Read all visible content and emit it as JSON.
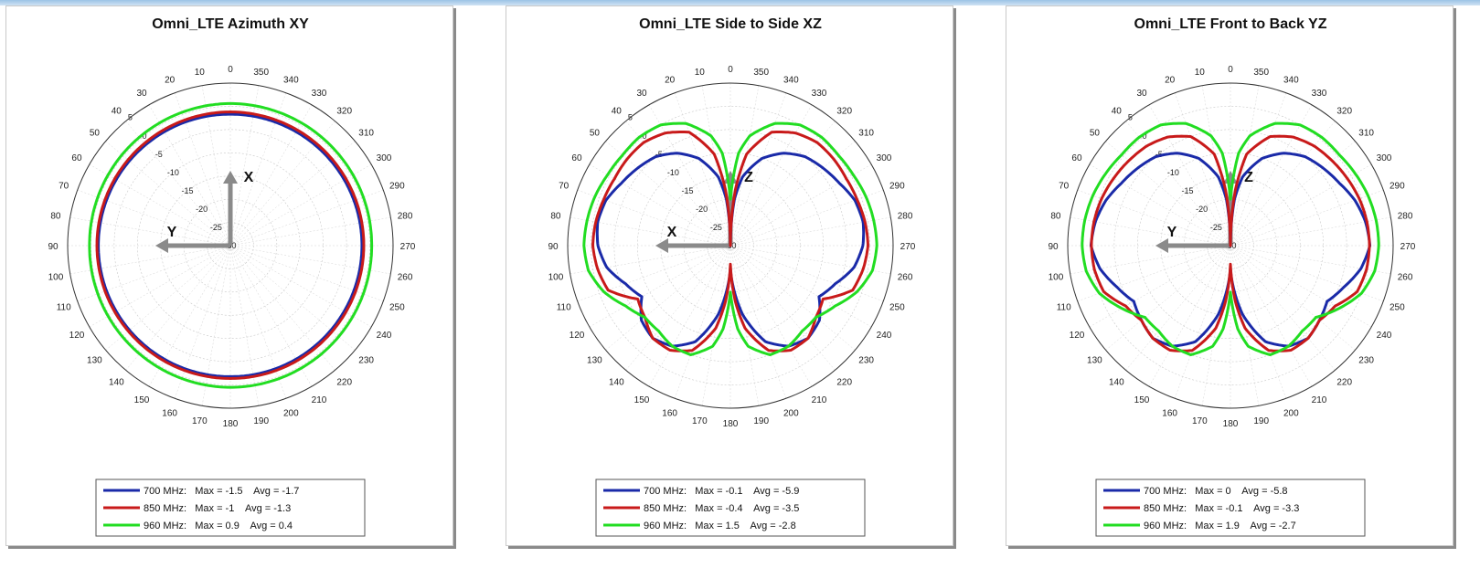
{
  "chart_data": [
    {
      "type": "polar",
      "title": "Omni_LTE Azimuth XY",
      "angle_labels": [
        "0",
        "10",
        "20",
        "30",
        "40",
        "50",
        "60",
        "70",
        "80",
        "90",
        "100",
        "110",
        "120",
        "130",
        "140",
        "150",
        "160",
        "170",
        "180",
        "190",
        "200",
        "210",
        "220",
        "230",
        "240",
        "250",
        "260",
        "270",
        "280",
        "290",
        "300",
        "310",
        "320",
        "330",
        "340",
        "350"
      ],
      "radial_labels": [
        "5",
        "0",
        "-5",
        "-10",
        "-15",
        "-20",
        "-25",
        "-30"
      ],
      "rlim": [
        -30,
        5
      ],
      "axis_arrows": [
        {
          "label": "X",
          "direction": "up"
        },
        {
          "label": "Y",
          "direction": "left"
        }
      ],
      "series": [
        {
          "name": "700 MHz",
          "color": "#1a2aa8",
          "max": -1.5,
          "avg": -1.7,
          "legend": "700 MHz:   Max = -1.5    Avg = -1.7",
          "angles": [
            0,
            90,
            180,
            270,
            360
          ],
          "values": [
            -1.7,
            -1.6,
            -1.8,
            -1.7,
            -1.7
          ]
        },
        {
          "name": "850 MHz",
          "color": "#c81a1a",
          "max": -1,
          "avg": -1.3,
          "legend": "850 MHz:   Max = -1    Avg = -1.3",
          "angles": [
            0,
            90,
            180,
            270,
            360
          ],
          "values": [
            -1.2,
            -1.3,
            -1.4,
            -1.3,
            -1.2
          ]
        },
        {
          "name": "960 MHz",
          "color": "#22dd22",
          "max": 0.9,
          "avg": 0.4,
          "legend": "960 MHz:   Max = 0.9    Avg = 0.4",
          "angles": [
            0,
            90,
            180,
            270,
            360
          ],
          "values": [
            0.6,
            0.3,
            0.5,
            0.4,
            0.6
          ]
        }
      ]
    },
    {
      "type": "polar",
      "title": "Omni_LTE Side to Side XZ",
      "angle_labels": [
        "0",
        "10",
        "20",
        "30",
        "40",
        "50",
        "60",
        "70",
        "80",
        "90",
        "100",
        "110",
        "120",
        "130",
        "140",
        "150",
        "160",
        "170",
        "180",
        "190",
        "200",
        "210",
        "220",
        "230",
        "240",
        "250",
        "260",
        "270",
        "280",
        "290",
        "300",
        "310",
        "320",
        "330",
        "340",
        "350"
      ],
      "radial_labels": [
        "5",
        "0",
        "-5",
        "-10",
        "-15",
        "-20",
        "-25",
        "-30"
      ],
      "rlim": [
        -30,
        5
      ],
      "axis_arrows": [
        {
          "label": "Z",
          "direction": "up"
        },
        {
          "label": "X",
          "direction": "left"
        }
      ],
      "series": [
        {
          "name": "700 MHz",
          "color": "#1a2aa8",
          "max": -0.1,
          "avg": -5.9,
          "legend": "700 MHz:   Max = -0.1    Avg = -5.9",
          "angles": [
            0,
            5,
            10,
            20,
            30,
            40,
            50,
            60,
            70,
            80,
            90,
            100,
            110,
            120,
            130,
            140,
            150,
            160,
            170,
            175,
            180,
            185,
            190,
            200,
            210,
            220,
            230,
            240,
            250,
            260,
            270,
            280,
            290,
            300,
            310,
            320,
            330,
            340,
            350,
            355,
            360
          ],
          "values": [
            -30,
            -20,
            -15,
            -10,
            -7,
            -5,
            -4,
            -3,
            -1.5,
            -1,
            -1.5,
            -3,
            -6,
            -8,
            -5,
            -4,
            -5,
            -8,
            -15,
            -20,
            -25,
            -20,
            -15,
            -8,
            -5,
            -4,
            -5,
            -8,
            -6,
            -3,
            -1.5,
            -1,
            -1.5,
            -3,
            -4,
            -5,
            -7,
            -10,
            -15,
            -20,
            -30
          ]
        },
        {
          "name": "850 MHz",
          "color": "#c81a1a",
          "max": -0.4,
          "avg": -3.5,
          "legend": "850 MHz:   Max = -0.4    Avg = -3.5",
          "angles": [
            0,
            5,
            10,
            20,
            30,
            40,
            50,
            60,
            70,
            80,
            90,
            100,
            110,
            120,
            130,
            140,
            150,
            160,
            170,
            175,
            180,
            185,
            190,
            200,
            210,
            220,
            230,
            240,
            250,
            260,
            270,
            280,
            290,
            300,
            310,
            320,
            330,
            340,
            350,
            355,
            360
          ],
          "values": [
            -30,
            -18,
            -10,
            -4,
            -2,
            -1,
            -1,
            -1.2,
            -1,
            -0.6,
            -0.4,
            -1,
            -2,
            -7,
            -6,
            -4,
            -4,
            -6,
            -12,
            -18,
            -26,
            -18,
            -12,
            -6,
            -4,
            -4,
            -6,
            -7,
            -2,
            -1,
            -0.4,
            -0.6,
            -1,
            -1.2,
            -1,
            -1,
            -2,
            -4,
            -10,
            -18,
            -30
          ]
        },
        {
          "name": "960 MHz",
          "color": "#22dd22",
          "max": 1.5,
          "avg": -2.8,
          "legend": "960 MHz:   Max = 1.5    Avg = -2.8",
          "angles": [
            0,
            5,
            10,
            20,
            30,
            40,
            50,
            60,
            70,
            80,
            90,
            100,
            110,
            120,
            130,
            140,
            150,
            160,
            170,
            175,
            180,
            185,
            190,
            200,
            210,
            220,
            230,
            240,
            250,
            260,
            270,
            280,
            290,
            300,
            310,
            320,
            330,
            340,
            350,
            355,
            360
          ],
          "values": [
            -20,
            -10,
            -6,
            -2,
            0,
            0.5,
            0.3,
            0.5,
            1,
            1.3,
            1.5,
            1,
            -1,
            -4,
            -6,
            -6,
            -5,
            -5,
            -8,
            -12,
            -20,
            -12,
            -8,
            -5,
            -5,
            -6,
            -6,
            -4,
            -1,
            1,
            1.5,
            1.3,
            1,
            0.5,
            0.3,
            0.5,
            0,
            -2,
            -6,
            -10,
            -20
          ]
        }
      ]
    },
    {
      "type": "polar",
      "title": "Omni_LTE Front to Back YZ",
      "angle_labels": [
        "0",
        "10",
        "20",
        "30",
        "40",
        "50",
        "60",
        "70",
        "80",
        "90",
        "100",
        "110",
        "120",
        "130",
        "140",
        "150",
        "160",
        "170",
        "180",
        "190",
        "200",
        "210",
        "220",
        "230",
        "240",
        "250",
        "260",
        "270",
        "280",
        "290",
        "300",
        "310",
        "320",
        "330",
        "340",
        "350"
      ],
      "radial_labels": [
        "5",
        "0",
        "-5",
        "-10",
        "-15",
        "-20",
        "-25",
        "-30"
      ],
      "rlim": [
        -30,
        5
      ],
      "axis_arrows": [
        {
          "label": "Z",
          "direction": "up"
        },
        {
          "label": "Y",
          "direction": "left"
        }
      ],
      "series": [
        {
          "name": "700 MHz",
          "color": "#1a2aa8",
          "max": 0,
          "avg": -5.8,
          "legend": "700 MHz:   Max = 0    Avg = -5.8",
          "angles": [
            0,
            5,
            10,
            20,
            30,
            40,
            50,
            60,
            70,
            80,
            90,
            100,
            110,
            120,
            130,
            140,
            150,
            160,
            170,
            175,
            180,
            185,
            190,
            200,
            210,
            220,
            230,
            240,
            250,
            260,
            270,
            280,
            290,
            300,
            310,
            320,
            330,
            340,
            350,
            355,
            360
          ],
          "values": [
            -30,
            -20,
            -15,
            -10,
            -7,
            -5,
            -4,
            -3,
            -1.5,
            -0.5,
            0,
            -1.5,
            -4,
            -6,
            -5,
            -4,
            -5,
            -8,
            -15,
            -20,
            -25,
            -20,
            -15,
            -8,
            -5,
            -4,
            -5,
            -6,
            -4,
            -1.5,
            0,
            -0.5,
            -1.5,
            -3,
            -4,
            -5,
            -7,
            -10,
            -15,
            -20,
            -30
          ]
        },
        {
          "name": "850 MHz",
          "color": "#c81a1a",
          "max": -0.1,
          "avg": -3.3,
          "legend": "850 MHz:   Max = -0.1    Avg = -3.3",
          "angles": [
            0,
            5,
            10,
            20,
            30,
            40,
            50,
            60,
            70,
            80,
            90,
            100,
            110,
            120,
            130,
            140,
            150,
            160,
            170,
            175,
            180,
            185,
            190,
            200,
            210,
            220,
            230,
            240,
            250,
            260,
            270,
            280,
            290,
            300,
            310,
            320,
            330,
            340,
            350,
            355,
            360
          ],
          "values": [
            -30,
            -18,
            -10,
            -5,
            -3,
            -2,
            -1.5,
            -1,
            -0.5,
            -0.2,
            -0.1,
            -0.3,
            -1,
            -4,
            -5,
            -4,
            -4,
            -6,
            -12,
            -18,
            -26,
            -18,
            -12,
            -6,
            -4,
            -4,
            -5,
            -4,
            -1,
            -0.3,
            -0.1,
            -0.2,
            -0.5,
            -1,
            -1.5,
            -2,
            -3,
            -5,
            -10,
            -18,
            -30
          ]
        },
        {
          "name": "960 MHz",
          "color": "#22dd22",
          "max": 1.9,
          "avg": -2.7,
          "legend": "960 MHz:   Max = 1.9    Avg = -2.7",
          "angles": [
            0,
            5,
            10,
            20,
            30,
            40,
            50,
            60,
            70,
            80,
            90,
            100,
            110,
            120,
            130,
            140,
            150,
            160,
            170,
            175,
            180,
            185,
            190,
            200,
            210,
            220,
            230,
            240,
            250,
            260,
            270,
            280,
            290,
            300,
            310,
            320,
            330,
            340,
            350,
            355,
            360
          ],
          "values": [
            -20,
            -10,
            -6,
            -2,
            0,
            0.5,
            0.5,
            1,
            1.5,
            1.8,
            1.9,
            1.5,
            0,
            -3,
            -6,
            -6,
            -5,
            -5,
            -8,
            -12,
            -20,
            -12,
            -8,
            -5,
            -5,
            -6,
            -6,
            -3,
            0,
            1.5,
            1.9,
            1.8,
            1.5,
            1,
            0.5,
            0.5,
            0,
            -2,
            -6,
            -10,
            -20
          ]
        }
      ]
    }
  ]
}
